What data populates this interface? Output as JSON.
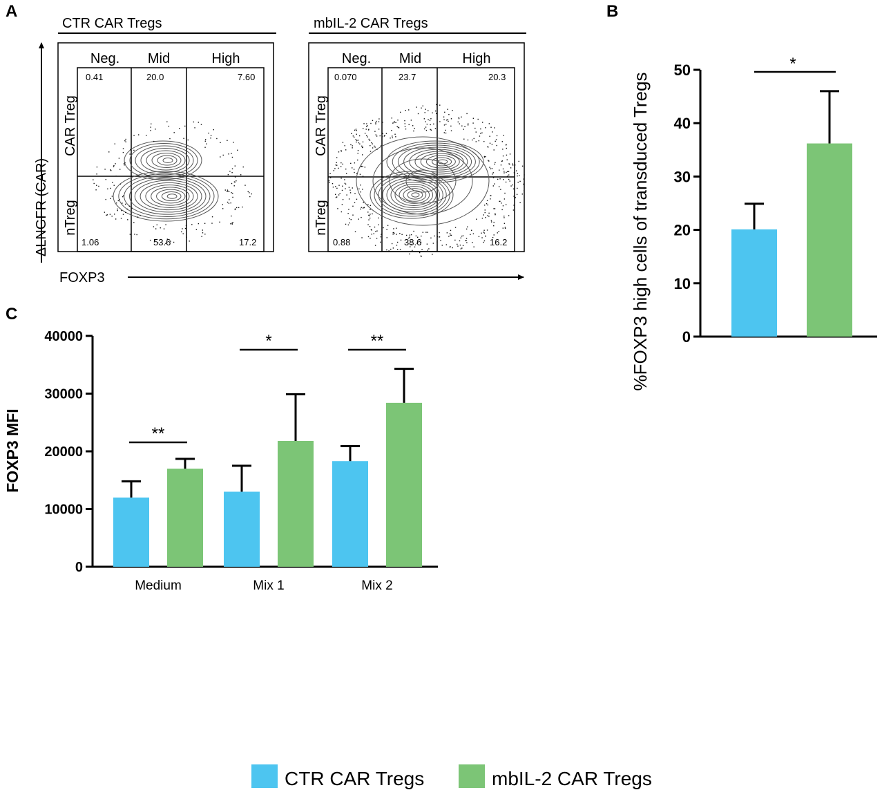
{
  "figure": {
    "panels": {
      "A": "A",
      "B": "B",
      "C": "C"
    }
  },
  "flow": {
    "y_axis_label": "ΔLNGFR (CAR)",
    "x_axis_label": "FOXP3",
    "row_labels": [
      "CAR Treg",
      "nTreg"
    ],
    "gate_labels": [
      "Neg.",
      "Mid",
      "High"
    ],
    "plots": [
      {
        "title": "CTR CAR Tregs",
        "top_values": [
          "0.41",
          "20.0",
          "7.60"
        ],
        "bottom_values": [
          "1.06",
          "53.6",
          "17.2"
        ]
      },
      {
        "title": "mbIL-2 CAR Tregs",
        "top_values": [
          "0.070",
          "23.7",
          "20.3"
        ],
        "bottom_values": [
          "0.88",
          "38.6",
          "16.2"
        ]
      }
    ]
  },
  "colors": {
    "ctr": "#4dc5f0",
    "mbil2": "#7cc576",
    "axis": "#000000"
  },
  "chart_data": [
    {
      "panel": "B",
      "type": "bar",
      "categories": [
        "CTR CAR Tregs",
        "mbIL-2 CAR Tregs"
      ],
      "values": [
        20.1,
        36.2
      ],
      "errors": [
        4.8,
        9.8
      ],
      "ylabel": "%FOXP3 high cells of transduced Tregs",
      "ylim": [
        0,
        50
      ],
      "yticks": [
        "0",
        "10",
        "20",
        "30",
        "40",
        "50"
      ],
      "significance": [
        {
          "between": [
            0,
            1
          ],
          "label": "*"
        }
      ]
    },
    {
      "panel": "C",
      "type": "bar",
      "categories": [
        "Medium",
        "Mix 1",
        "Mix 2"
      ],
      "series": [
        {
          "name": "CTR CAR Tregs",
          "values": [
            12000,
            13000,
            18300
          ],
          "errors": [
            2800,
            4500,
            2600
          ]
        },
        {
          "name": "mbIL-2 CAR Tregs",
          "values": [
            17000,
            21800,
            28400
          ],
          "errors": [
            1700,
            8100,
            5900
          ]
        }
      ],
      "ylabel": "FOXP3 MFI",
      "ylim": [
        0,
        40000
      ],
      "yticks": [
        "0",
        "10000",
        "20000",
        "30000",
        "40000"
      ],
      "significance": [
        {
          "category": 0,
          "label": "**"
        },
        {
          "category": 1,
          "label": "*"
        },
        {
          "category": 2,
          "label": "**"
        }
      ]
    }
  ],
  "legend": {
    "items": [
      "CTR CAR Tregs",
      "mbIL-2 CAR Tregs"
    ]
  }
}
